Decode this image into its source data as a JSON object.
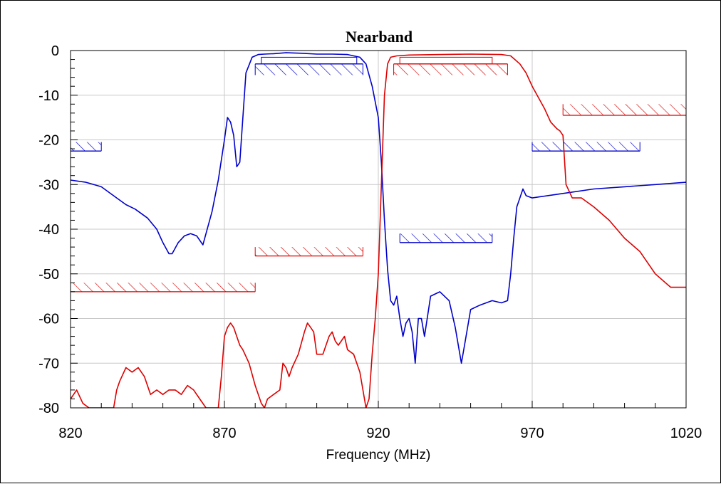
{
  "chart_data": {
    "type": "line",
    "title": "Nearband",
    "xlabel": "Frequency (MHz)",
    "ylabel": "",
    "xlim": [
      820,
      1020
    ],
    "ylim": [
      -80,
      0
    ],
    "x_ticks": [
      820,
      870,
      920,
      970,
      1020
    ],
    "y_ticks": [
      0,
      -10,
      -20,
      -30,
      -40,
      -50,
      -60,
      -70,
      -80
    ],
    "x_tick_labels": [
      "820",
      "870",
      "920",
      "970",
      "1020"
    ],
    "y_tick_labels": [
      "0",
      "-10",
      "-20",
      "-30",
      "-40",
      "-50",
      "-60",
      "-70",
      "-80"
    ],
    "grid": true,
    "colors": {
      "blue": "#0000cc",
      "red": "#dd0000",
      "grid": "#c8c8c8"
    },
    "series": [
      {
        "color": "#0000cc",
        "x": [
          820,
          825,
          830,
          835,
          838,
          841,
          845,
          848,
          850,
          852,
          853,
          855,
          857,
          859,
          861,
          863,
          864,
          866,
          868,
          870,
          871,
          872,
          873,
          874,
          875,
          876,
          877,
          879,
          881,
          883,
          886,
          890,
          895,
          900,
          905,
          910,
          914,
          916,
          918,
          920,
          921,
          922,
          923,
          924,
          925,
          926,
          927,
          928,
          929,
          930,
          931,
          932,
          933,
          934,
          935,
          937,
          940,
          943,
          945,
          946,
          947,
          948,
          950,
          953,
          957,
          960,
          962,
          963,
          964,
          965,
          966,
          967,
          968,
          970,
          975,
          980,
          990,
          1000,
          1010,
          1020
        ],
        "y": [
          -29,
          -29.5,
          -30.5,
          -33,
          -34.5,
          -35.5,
          -37.5,
          -40,
          -43,
          -45.5,
          -45.5,
          -43,
          -41.5,
          -41,
          -41.5,
          -43.5,
          -41,
          -36,
          -29,
          -20,
          -15,
          -16,
          -19,
          -26,
          -25,
          -15,
          -5,
          -1.5,
          -0.9,
          -0.8,
          -0.7,
          -0.5,
          -0.6,
          -0.8,
          -0.8,
          -0.9,
          -1.5,
          -3,
          -8,
          -15,
          -25,
          -38,
          -49,
          -56,
          -57,
          -55,
          -60,
          -64,
          -61,
          -60,
          -63,
          -70,
          -60,
          -60,
          -64,
          -55,
          -54,
          -56,
          -62,
          -66,
          -70,
          -66,
          -58,
          -57,
          -56,
          -56.5,
          -56,
          -50,
          -42,
          -35,
          -33,
          -31,
          -32.5,
          -33,
          -32.5,
          -32,
          -31,
          -30.5,
          -30,
          -29.5
        ]
      },
      {
        "color": "#dd0000",
        "x": [
          820,
          822,
          824,
          826,
          828,
          830,
          832,
          834,
          835,
          836,
          838,
          840,
          842,
          844,
          846,
          848,
          850,
          852,
          854,
          856,
          858,
          860,
          862,
          864,
          865,
          866,
          867,
          868,
          869,
          870,
          871,
          872,
          873,
          874,
          875,
          876,
          878,
          880,
          882,
          883,
          884,
          886,
          888,
          889,
          890,
          891,
          892,
          894,
          896,
          897,
          898,
          899,
          900,
          902,
          904,
          905,
          906,
          907,
          908,
          909,
          910,
          912,
          914,
          915,
          916,
          917,
          918,
          919,
          920,
          921,
          922,
          923,
          924,
          926,
          930,
          940,
          950,
          960,
          963,
          966,
          968,
          970,
          974,
          976,
          978,
          979,
          980,
          981,
          983,
          986,
          990,
          995,
          1000,
          1005,
          1010,
          1015,
          1020
        ],
        "y": [
          -78,
          -76,
          -79,
          -80,
          -80,
          -80,
          -80,
          -80,
          -76,
          -74,
          -71,
          -72,
          -71,
          -73,
          -77,
          -76,
          -77,
          -76,
          -76,
          -77,
          -75,
          -76,
          -78,
          -80,
          -80,
          -80,
          -80,
          -80,
          -73,
          -64,
          -62,
          -61,
          -62,
          -64,
          -66,
          -67,
          -70,
          -75,
          -79,
          -80,
          -78,
          -77,
          -76,
          -70,
          -71,
          -73,
          -71,
          -68,
          -63,
          -61,
          -62,
          -63,
          -68,
          -68,
          -64,
          -63,
          -65,
          -66,
          -65,
          -64,
          -67,
          -68,
          -72,
          -76,
          -80,
          -78,
          -68,
          -60,
          -50,
          -30,
          -10,
          -3,
          -1.5,
          -1.2,
          -1,
          -0.9,
          -0.8,
          -0.9,
          -1.2,
          -3,
          -5,
          -8,
          -13,
          -16,
          -17.5,
          -18,
          -19,
          -30,
          -33,
          -33,
          -35,
          -38,
          -42,
          -45,
          -50,
          -53,
          -53
        ]
      }
    ],
    "annotations": [
      {
        "kind": "mask",
        "color": "#0000cc",
        "x": [
          820,
          830
        ],
        "y": [
          -22.5,
          -20.5
        ],
        "hatch_side": "above"
      },
      {
        "kind": "mask",
        "color": "#0000cc",
        "x": [
          880,
          915
        ],
        "y": [
          -5.5,
          -3
        ],
        "hatch_side": "below"
      },
      {
        "kind": "mask",
        "color": "#0000cc",
        "x": [
          882,
          913
        ],
        "y": [
          -3,
          -1.5
        ],
        "hatch_side": "none"
      },
      {
        "kind": "mask",
        "color": "#0000cc",
        "x": [
          970,
          1005
        ],
        "y": [
          -22.5,
          -20.5
        ],
        "hatch_side": "above"
      },
      {
        "kind": "mask",
        "color": "#0000cc",
        "x": [
          927,
          957
        ],
        "y": [
          -43,
          -41
        ],
        "hatch_side": "above"
      },
      {
        "kind": "mask",
        "color": "#dd0000",
        "x": [
          820,
          880
        ],
        "y": [
          -54,
          -52
        ],
        "hatch_side": "above"
      },
      {
        "kind": "mask",
        "color": "#dd0000",
        "x": [
          880,
          915
        ],
        "y": [
          -46,
          -44
        ],
        "hatch_side": "above"
      },
      {
        "kind": "mask",
        "color": "#dd0000",
        "x": [
          925,
          962
        ],
        "y": [
          -5.5,
          -3
        ],
        "hatch_side": "below"
      },
      {
        "kind": "mask",
        "color": "#dd0000",
        "x": [
          927,
          957
        ],
        "y": [
          -3,
          -1.5
        ],
        "hatch_side": "none"
      },
      {
        "kind": "mask",
        "color": "#dd0000",
        "x": [
          980,
          1020
        ],
        "y": [
          -14.5,
          -12
        ],
        "hatch_side": "above"
      }
    ]
  }
}
